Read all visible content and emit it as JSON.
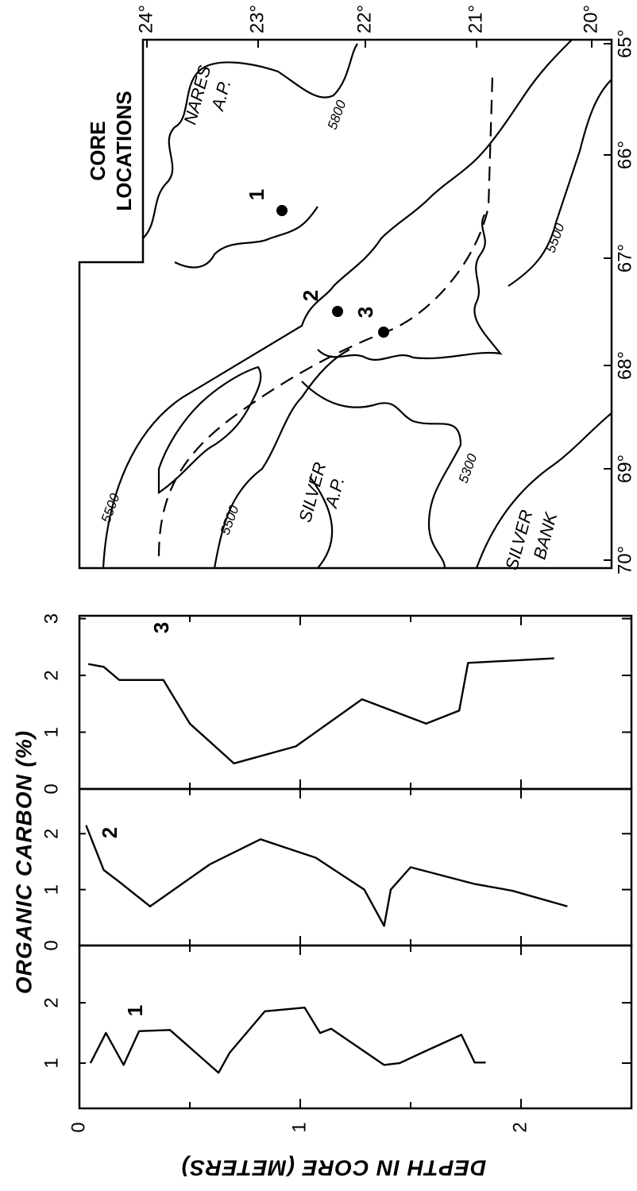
{
  "chart_data": [
    {
      "type": "line",
      "title": "3",
      "y_label": "ORGANIC CARBON (%)",
      "x": [
        0.04,
        0.11,
        0.18,
        0.38,
        0.5,
        0.7,
        0.98,
        1.28,
        1.57,
        1.72,
        1.76,
        2.15
      ],
      "values": [
        2.2,
        2.15,
        1.92,
        1.92,
        1.15,
        0.45,
        0.75,
        1.58,
        1.15,
        1.38,
        2.22,
        2.3
      ],
      "xlim": [
        0,
        2.5
      ],
      "xticks": [
        0,
        1,
        2
      ],
      "xminor": [
        0.5,
        1.5
      ],
      "ylim": [
        0,
        3.05
      ],
      "yticks": [
        0,
        1,
        2,
        3
      ],
      "color": "#000000"
    },
    {
      "type": "line",
      "title": "2",
      "x": [
        0.03,
        0.11,
        0.18,
        0.32,
        0.59,
        0.82,
        1.07,
        1.29,
        1.38,
        1.41,
        1.5,
        1.79,
        1.96,
        2.21
      ],
      "values": [
        2.15,
        1.35,
        1.14,
        0.7,
        1.45,
        1.9,
        1.57,
        1.0,
        0.35,
        1.0,
        1.4,
        1.1,
        0.98,
        0.7
      ],
      "xlim": [
        0,
        2.5
      ],
      "xticks": [
        0,
        1,
        2
      ],
      "xminor": [
        0.5,
        1.5
      ],
      "ylim": [
        0,
        2.8
      ],
      "yticks": [
        0,
        1,
        2
      ],
      "color": "#000000"
    },
    {
      "type": "line",
      "title": "1",
      "x_label": "DEPTH IN CORE (METERS)",
      "x": [
        0.05,
        0.12,
        0.2,
        0.27,
        0.41,
        0.63,
        0.68,
        0.84,
        1.02,
        1.09,
        1.14,
        1.38,
        1.45,
        1.55,
        1.73,
        1.79,
        1.84
      ],
      "values": [
        1.0,
        1.5,
        0.97,
        1.53,
        1.55,
        0.84,
        1.17,
        1.86,
        1.92,
        1.5,
        1.57,
        0.97,
        1.0,
        1.17,
        1.47,
        1.01,
        1.01
      ],
      "xlim": [
        0,
        2.5
      ],
      "xticks": [
        0,
        1,
        2
      ],
      "xminor": [
        0.5,
        1.5
      ],
      "ylim": [
        0.25,
        2.95
      ],
      "yticks": [
        1,
        2
      ],
      "color": "#000000"
    }
  ],
  "map": {
    "title": [
      "CORE",
      "LOCATIONS"
    ],
    "latitude_labels": [
      "24°",
      "23°",
      "22°",
      "21°",
      "20°"
    ],
    "longitude_labels": [
      "70°",
      "69°",
      "68°",
      "67°",
      "66°",
      "65°"
    ],
    "cores": [
      "1",
      "2",
      "3"
    ],
    "areas": [
      "NARES",
      "A.P.",
      "SILVER",
      "A.P.",
      "SILVER",
      "BANK"
    ],
    "contours": [
      "5800",
      "5500",
      "5500",
      "5500",
      "5300"
    ]
  }
}
